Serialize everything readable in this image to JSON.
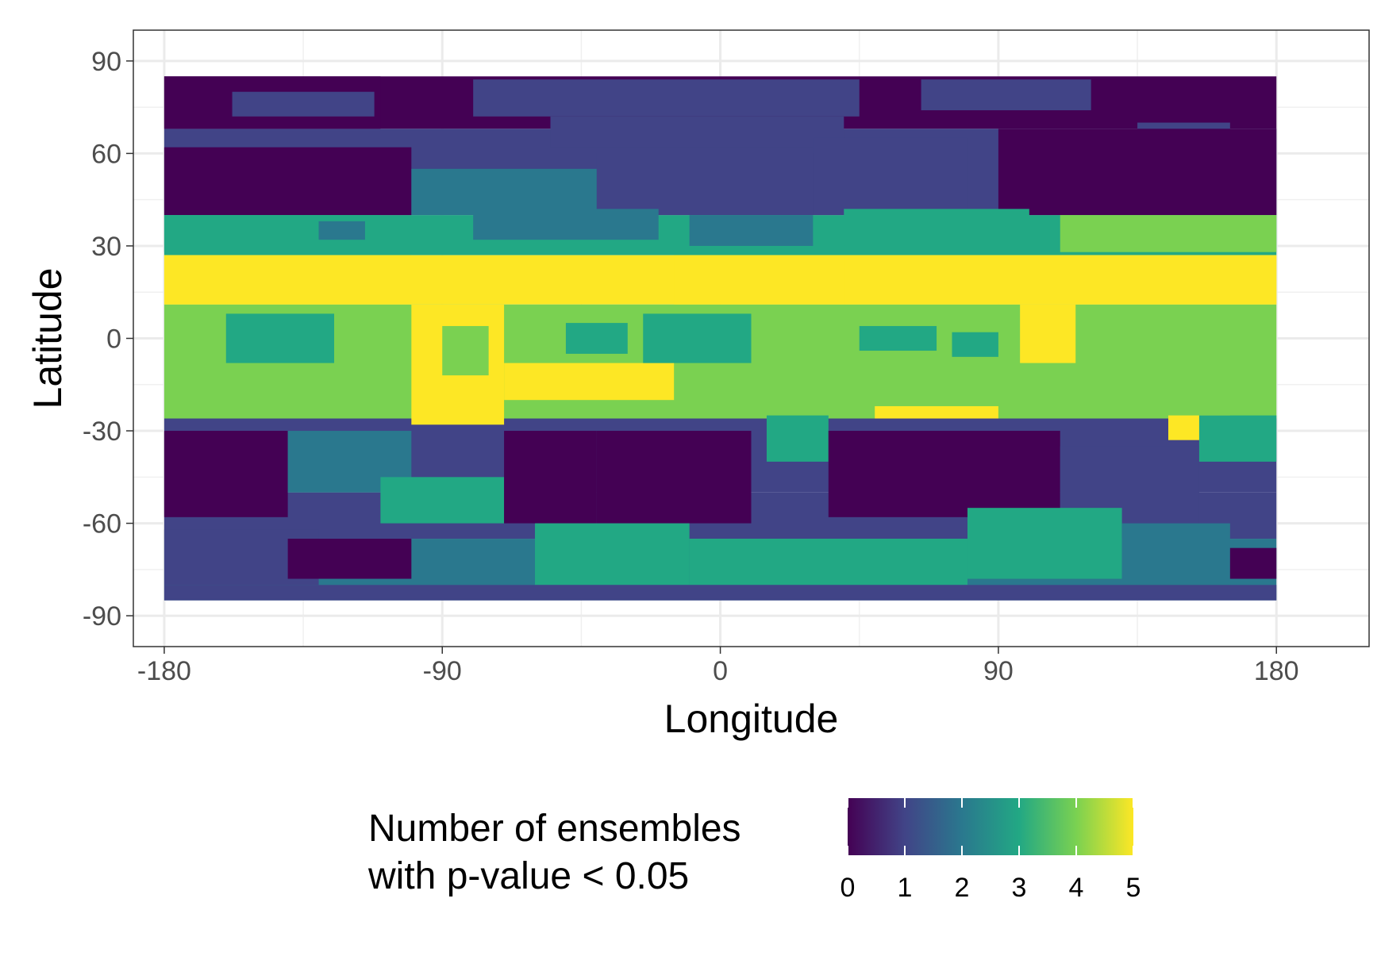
{
  "chart_data": {
    "type": "heatmap",
    "title": "",
    "xlabel": "Longitude",
    "ylabel": "Latitude",
    "xlim": [
      -190,
      210
    ],
    "ylim": [
      -100,
      100
    ],
    "x_ticks": [
      -180,
      -90,
      0,
      90,
      180
    ],
    "x_tick_labels": [
      "-180",
      "-90",
      "0",
      "90",
      "180"
    ],
    "y_ticks": [
      90,
      60,
      30,
      0,
      -30,
      -60,
      -90
    ],
    "y_tick_labels": [
      "90",
      "60",
      "30",
      "0",
      "-30",
      "-60",
      "-90"
    ],
    "grid": true,
    "legend": {
      "position": "bottom",
      "title_lines": [
        "Number of ensembles",
        "with p-value < 0.05"
      ],
      "min": 0,
      "max": 5,
      "ticks": [
        0,
        1,
        2,
        3,
        4,
        5
      ],
      "tick_labels": [
        "0",
        "1",
        "2",
        "3",
        "4",
        "5"
      ],
      "colormap": "viridis",
      "colors": [
        "#440154",
        "#414487",
        "#2A788E",
        "#22A884",
        "#7AD151",
        "#FDE725"
      ]
    },
    "grid_extent": {
      "lon": [
        -180,
        180
      ],
      "lat": [
        -85,
        85
      ]
    },
    "latitude_bands": [
      {
        "lat": [
          68,
          85
        ],
        "value": 0
      },
      {
        "lat": [
          40,
          68
        ],
        "value": 1
      },
      {
        "lat": [
          27,
          40
        ],
        "value": 3
      },
      {
        "lat": [
          11,
          27
        ],
        "value": 5
      },
      {
        "lat": [
          -26,
          11
        ],
        "value": 4
      },
      {
        "lat": [
          -50,
          -26
        ],
        "value": 1
      },
      {
        "lat": [
          -65,
          -50
        ],
        "value": 1
      },
      {
        "lat": [
          -85,
          -65
        ],
        "value": 2
      }
    ],
    "regions": [
      {
        "lon": [
          -180,
          -110
        ],
        "lat": [
          68,
          85
        ],
        "value": 0
      },
      {
        "lon": [
          -158,
          -112
        ],
        "lat": [
          72,
          80
        ],
        "value": 1
      },
      {
        "lon": [
          -80,
          45
        ],
        "lat": [
          72,
          84
        ],
        "value": 1
      },
      {
        "lon": [
          -55,
          40
        ],
        "lat": [
          62,
          72
        ],
        "value": 1
      },
      {
        "lon": [
          65,
          120
        ],
        "lat": [
          74,
          84
        ],
        "value": 1
      },
      {
        "lon": [
          135,
          165
        ],
        "lat": [
          60,
          70
        ],
        "value": 1
      },
      {
        "lon": [
          -180,
          -100
        ],
        "lat": [
          40,
          62
        ],
        "value": 0
      },
      {
        "lon": [
          -100,
          -40
        ],
        "lat": [
          40,
          55
        ],
        "value": 2
      },
      {
        "lon": [
          -40,
          30
        ],
        "lat": [
          40,
          60
        ],
        "value": 1
      },
      {
        "lon": [
          30,
          80
        ],
        "lat": [
          40,
          65
        ],
        "value": 1
      },
      {
        "lon": [
          90,
          180
        ],
        "lat": [
          40,
          68
        ],
        "value": 0
      },
      {
        "lon": [
          -180,
          -110
        ],
        "lat": [
          28,
          40
        ],
        "value": 3
      },
      {
        "lon": [
          -130,
          -115
        ],
        "lat": [
          32,
          38
        ],
        "value": 2
      },
      {
        "lon": [
          -80,
          -20
        ],
        "lat": [
          32,
          42
        ],
        "value": 2
      },
      {
        "lon": [
          -10,
          30
        ],
        "lat": [
          30,
          40
        ],
        "value": 2
      },
      {
        "lon": [
          40,
          100
        ],
        "lat": [
          30,
          42
        ],
        "value": 3
      },
      {
        "lon": [
          110,
          180
        ],
        "lat": [
          28,
          40
        ],
        "value": 4
      },
      {
        "lon": [
          -180,
          -100
        ],
        "lat": [
          11,
          27
        ],
        "value": 5
      },
      {
        "lon": [
          -100,
          -70
        ],
        "lat": [
          -28,
          11
        ],
        "value": 5
      },
      {
        "lon": [
          -70,
          -15
        ],
        "lat": [
          -20,
          -8
        ],
        "value": 5
      },
      {
        "lon": [
          -15,
          40
        ],
        "lat": [
          11,
          27
        ],
        "value": 5
      },
      {
        "lon": [
          40,
          180
        ],
        "lat": [
          11,
          27
        ],
        "value": 5
      },
      {
        "lon": [
          97,
          115
        ],
        "lat": [
          -8,
          11
        ],
        "value": 5
      },
      {
        "lon": [
          50,
          90
        ],
        "lat": [
          -26,
          -22
        ],
        "value": 5
      },
      {
        "lon": [
          145,
          165
        ],
        "lat": [
          -33,
          -25
        ],
        "value": 5
      },
      {
        "lon": [
          -160,
          -125
        ],
        "lat": [
          -8,
          8
        ],
        "value": 3
      },
      {
        "lon": [
          -90,
          -75
        ],
        "lat": [
          -12,
          4
        ],
        "value": 4
      },
      {
        "lon": [
          -50,
          -30
        ],
        "lat": [
          -5,
          5
        ],
        "value": 3
      },
      {
        "lon": [
          -25,
          10
        ],
        "lat": [
          -8,
          8
        ],
        "value": 3
      },
      {
        "lon": [
          45,
          70
        ],
        "lat": [
          -4,
          4
        ],
        "value": 3
      },
      {
        "lon": [
          75,
          90
        ],
        "lat": [
          -6,
          2
        ],
        "value": 3
      },
      {
        "lon": [
          -180,
          -140
        ],
        "lat": [
          -58,
          -30
        ],
        "value": 0
      },
      {
        "lon": [
          -140,
          -100
        ],
        "lat": [
          -50,
          -30
        ],
        "value": 2
      },
      {
        "lon": [
          -110,
          -70
        ],
        "lat": [
          -60,
          -45
        ],
        "value": 3
      },
      {
        "lon": [
          -70,
          -40
        ],
        "lat": [
          -60,
          -30
        ],
        "value": 0
      },
      {
        "lon": [
          -40,
          10
        ],
        "lat": [
          -60,
          -30
        ],
        "value": 0
      },
      {
        "lon": [
          15,
          35
        ],
        "lat": [
          -40,
          -25
        ],
        "value": 3
      },
      {
        "lon": [
          35,
          110
        ],
        "lat": [
          -58,
          -30
        ],
        "value": 0
      },
      {
        "lon": [
          110,
          155
        ],
        "lat": [
          -60,
          -35
        ],
        "value": 1
      },
      {
        "lon": [
          155,
          180
        ],
        "lat": [
          -40,
          -25
        ],
        "value": 3
      },
      {
        "lon": [
          -180,
          -130
        ],
        "lat": [
          -80,
          -62
        ],
        "value": 1
      },
      {
        "lon": [
          -140,
          -100
        ],
        "lat": [
          -78,
          -65
        ],
        "value": 0
      },
      {
        "lon": [
          -60,
          -10
        ],
        "lat": [
          -80,
          -60
        ],
        "value": 3
      },
      {
        "lon": [
          -10,
          80
        ],
        "lat": [
          -80,
          -65
        ],
        "value": 3
      },
      {
        "lon": [
          80,
          130
        ],
        "lat": [
          -78,
          -55
        ],
        "value": 3
      },
      {
        "lon": [
          130,
          165
        ],
        "lat": [
          -80,
          -60
        ],
        "value": 2
      },
      {
        "lon": [
          165,
          180
        ],
        "lat": [
          -78,
          -68
        ],
        "value": 0
      },
      {
        "lon": [
          -180,
          180
        ],
        "lat": [
          -85,
          -80
        ],
        "value": 1
      }
    ]
  }
}
